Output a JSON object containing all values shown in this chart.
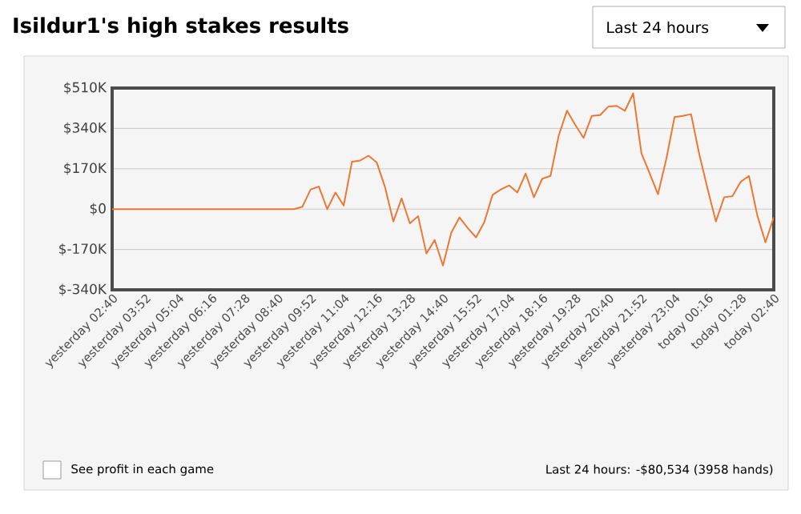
{
  "chart_data": {
    "type": "line",
    "title": "Isildur1's high stakes results",
    "annotations": [
      "Last 24 hours",
      "See profit in each game",
      "Last 24 hours: -$80,534 (3958 hands)"
    ],
    "categories": [
      "yesterday 02:40",
      null,
      null,
      null,
      "yesterday 03:52",
      null,
      null,
      null,
      "yesterday 05:04",
      null,
      null,
      null,
      "yesterday 06:16",
      null,
      null,
      null,
      "yesterday 07:28",
      null,
      null,
      null,
      "yesterday 08:40",
      null,
      null,
      null,
      "yesterday 09:52",
      null,
      null,
      null,
      "yesterday 11:04",
      null,
      null,
      null,
      "yesterday 12:16",
      null,
      null,
      null,
      "yesterday 13:28",
      null,
      null,
      null,
      "yesterday 14:40",
      null,
      null,
      null,
      "yesterday 15:52",
      null,
      null,
      null,
      "yesterday 17:04",
      null,
      null,
      null,
      "yesterday 18:16",
      null,
      null,
      null,
      "yesterday 19:28",
      null,
      null,
      null,
      "yesterday 20:40",
      null,
      null,
      null,
      "yesterday 21:52",
      null,
      null,
      null,
      "yesterday 23:04",
      null,
      null,
      null,
      "today 00:16",
      null,
      null,
      null,
      "today 01:28",
      null,
      null,
      null,
      "today 02:40"
    ],
    "series": [
      {
        "color": "#ee7733",
        "values": [
          0,
          0,
          0,
          0,
          0,
          0,
          0,
          0,
          0,
          0,
          0,
          0,
          0,
          0,
          0,
          0,
          0,
          0,
          0,
          0,
          0,
          0,
          0,
          10,
          83,
          95,
          0,
          70,
          15,
          200,
          205,
          225,
          196,
          92,
          -52,
          45,
          -60,
          -30,
          -187,
          -130,
          -238,
          -100,
          -35,
          -80,
          -119,
          -55,
          60,
          83,
          100,
          70,
          150,
          50,
          128,
          140,
          310,
          415,
          355,
          300,
          393,
          396,
          432,
          435,
          414,
          488,
          235,
          150,
          63,
          210,
          388,
          393,
          400,
          230,
          85,
          -52,
          50,
          55,
          115,
          140,
          -25,
          -140,
          -34
        ]
      }
    ],
    "ylim": [
      -340,
      510
    ],
    "yticks": [
      {
        "value": -340,
        "label": "$-340K"
      },
      {
        "value": -170,
        "label": "$-170K"
      },
      {
        "value": 0,
        "label": "$0"
      },
      {
        "value": 170,
        "label": "$170K"
      },
      {
        "value": 340,
        "label": "$340K"
      },
      {
        "value": 510,
        "label": "$510K"
      }
    ],
    "grid": "y",
    "marker": "none",
    "line_style": "solid"
  }
}
